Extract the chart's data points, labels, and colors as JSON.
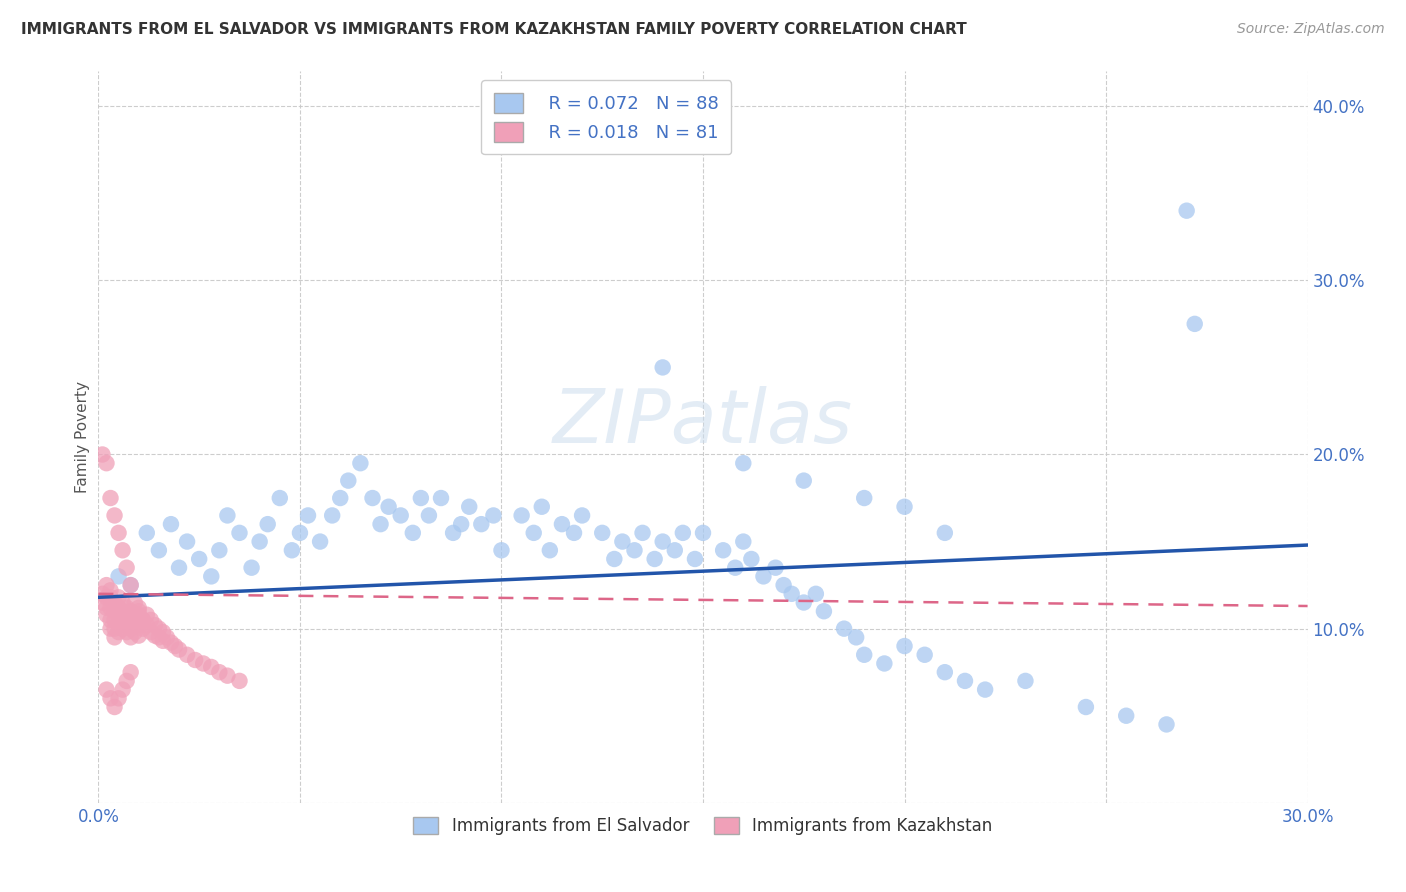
{
  "title": "IMMIGRANTS FROM EL SALVADOR VS IMMIGRANTS FROM KAZAKHSTAN FAMILY POVERTY CORRELATION CHART",
  "source": "Source: ZipAtlas.com",
  "ylabel_label": "Family Poverty",
  "xlim": [
    0.0,
    0.3
  ],
  "ylim": [
    0.0,
    0.42
  ],
  "legend_R_blue": "0.072",
  "legend_N_blue": "88",
  "legend_R_pink": "0.018",
  "legend_N_pink": "81",
  "color_blue": "#A8C8F0",
  "color_pink": "#F0A0B8",
  "line_color_blue": "#2255AA",
  "line_color_pink": "#DD6688",
  "watermark": "ZIPatlas",
  "blue_line_start": 0.118,
  "blue_line_end": 0.148,
  "pink_line_start": 0.12,
  "pink_line_end": 0.113,
  "scatter_blue_x": [
    0.005,
    0.008,
    0.012,
    0.015,
    0.018,
    0.02,
    0.022,
    0.025,
    0.028,
    0.03,
    0.032,
    0.035,
    0.038,
    0.04,
    0.042,
    0.045,
    0.048,
    0.05,
    0.052,
    0.055,
    0.058,
    0.06,
    0.062,
    0.065,
    0.068,
    0.07,
    0.072,
    0.075,
    0.078,
    0.08,
    0.082,
    0.085,
    0.088,
    0.09,
    0.092,
    0.095,
    0.098,
    0.1,
    0.105,
    0.108,
    0.11,
    0.112,
    0.115,
    0.118,
    0.12,
    0.125,
    0.128,
    0.13,
    0.133,
    0.135,
    0.138,
    0.14,
    0.143,
    0.145,
    0.148,
    0.15,
    0.155,
    0.158,
    0.16,
    0.162,
    0.165,
    0.168,
    0.17,
    0.172,
    0.175,
    0.178,
    0.18,
    0.185,
    0.188,
    0.19,
    0.195,
    0.2,
    0.205,
    0.21,
    0.215,
    0.22,
    0.23,
    0.245,
    0.255,
    0.265,
    0.27,
    0.272,
    0.14,
    0.16,
    0.175,
    0.19,
    0.2,
    0.21
  ],
  "scatter_blue_y": [
    0.13,
    0.125,
    0.155,
    0.145,
    0.16,
    0.135,
    0.15,
    0.14,
    0.13,
    0.145,
    0.165,
    0.155,
    0.135,
    0.15,
    0.16,
    0.175,
    0.145,
    0.155,
    0.165,
    0.15,
    0.165,
    0.175,
    0.185,
    0.195,
    0.175,
    0.16,
    0.17,
    0.165,
    0.155,
    0.175,
    0.165,
    0.175,
    0.155,
    0.16,
    0.17,
    0.16,
    0.165,
    0.145,
    0.165,
    0.155,
    0.17,
    0.145,
    0.16,
    0.155,
    0.165,
    0.155,
    0.14,
    0.15,
    0.145,
    0.155,
    0.14,
    0.15,
    0.145,
    0.155,
    0.14,
    0.155,
    0.145,
    0.135,
    0.15,
    0.14,
    0.13,
    0.135,
    0.125,
    0.12,
    0.115,
    0.12,
    0.11,
    0.1,
    0.095,
    0.085,
    0.08,
    0.09,
    0.085,
    0.075,
    0.07,
    0.065,
    0.07,
    0.055,
    0.05,
    0.045,
    0.34,
    0.275,
    0.25,
    0.195,
    0.185,
    0.175,
    0.17,
    0.155
  ],
  "scatter_pink_x": [
    0.001,
    0.001,
    0.002,
    0.002,
    0.002,
    0.002,
    0.003,
    0.003,
    0.003,
    0.003,
    0.003,
    0.004,
    0.004,
    0.004,
    0.004,
    0.004,
    0.005,
    0.005,
    0.005,
    0.005,
    0.005,
    0.006,
    0.006,
    0.006,
    0.006,
    0.007,
    0.007,
    0.007,
    0.007,
    0.008,
    0.008,
    0.008,
    0.008,
    0.009,
    0.009,
    0.009,
    0.01,
    0.01,
    0.01,
    0.01,
    0.011,
    0.011,
    0.012,
    0.012,
    0.013,
    0.013,
    0.014,
    0.014,
    0.015,
    0.015,
    0.016,
    0.016,
    0.017,
    0.018,
    0.019,
    0.02,
    0.022,
    0.024,
    0.026,
    0.028,
    0.03,
    0.032,
    0.035,
    0.002,
    0.003,
    0.004,
    0.005,
    0.006,
    0.007,
    0.008,
    0.001,
    0.002,
    0.003,
    0.004,
    0.005,
    0.006,
    0.007,
    0.008,
    0.009,
    0.01,
    0.011
  ],
  "scatter_pink_y": [
    0.12,
    0.115,
    0.125,
    0.118,
    0.112,
    0.108,
    0.122,
    0.118,
    0.112,
    0.105,
    0.1,
    0.115,
    0.11,
    0.105,
    0.1,
    0.095,
    0.118,
    0.112,
    0.108,
    0.102,
    0.098,
    0.115,
    0.11,
    0.105,
    0.1,
    0.112,
    0.108,
    0.102,
    0.098,
    0.11,
    0.105,
    0.1,
    0.095,
    0.108,
    0.103,
    0.098,
    0.112,
    0.108,
    0.102,
    0.096,
    0.105,
    0.1,
    0.108,
    0.102,
    0.105,
    0.098,
    0.102,
    0.096,
    0.1,
    0.095,
    0.098,
    0.093,
    0.095,
    0.092,
    0.09,
    0.088,
    0.085,
    0.082,
    0.08,
    0.078,
    0.075,
    0.073,
    0.07,
    0.065,
    0.06,
    0.055,
    0.06,
    0.065,
    0.07,
    0.075,
    0.2,
    0.195,
    0.175,
    0.165,
    0.155,
    0.145,
    0.135,
    0.125,
    0.115,
    0.11,
    0.105
  ]
}
